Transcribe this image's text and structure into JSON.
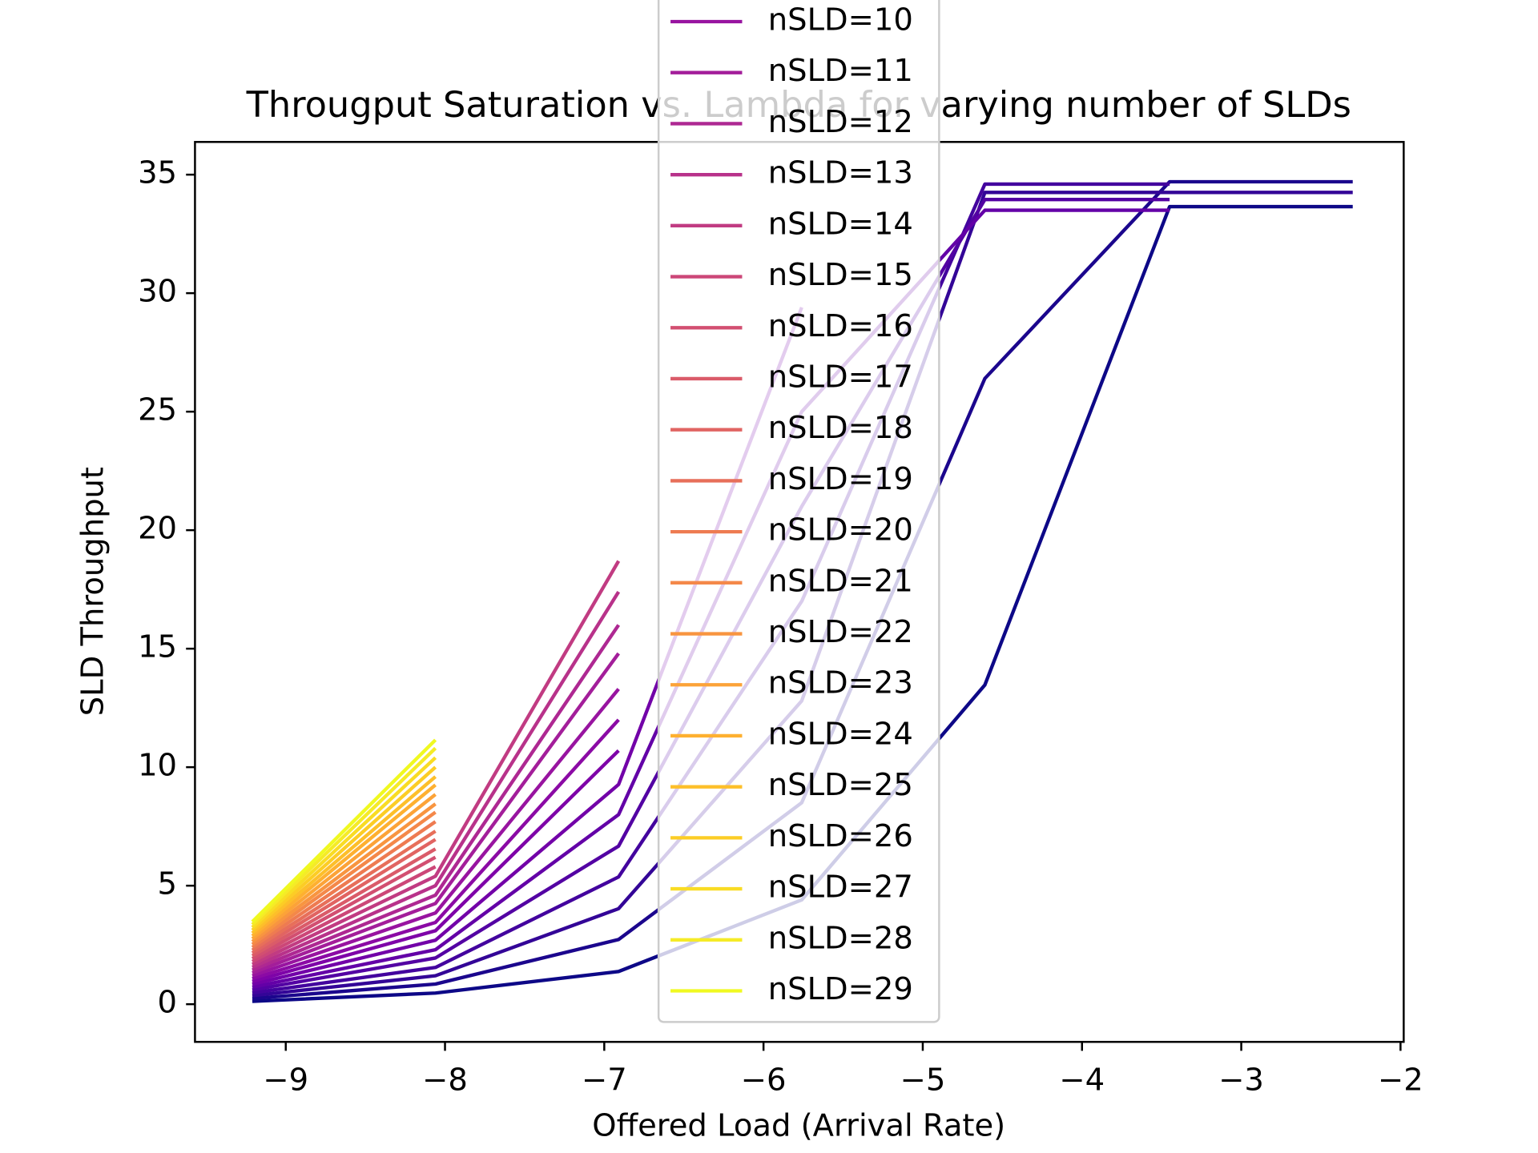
{
  "chart_data": {
    "type": "line",
    "title": "Througput Saturation vs. Lambda for varying number of SLDs",
    "x_label": "Offered Load (Arrival Rate)",
    "y_label": "SLD Throughput",
    "x": [
      -9.21,
      -8.06,
      -6.91,
      -5.76,
      -4.61,
      -3.45,
      -2.3
    ],
    "xlim": [
      -9.57,
      -1.98
    ],
    "ylim": [
      -1.59,
      36.38
    ],
    "xticks": [
      {
        "value": -9,
        "label": "−9"
      },
      {
        "value": -8,
        "label": "−8"
      },
      {
        "value": -7,
        "label": "−7"
      },
      {
        "value": -6,
        "label": "−6"
      },
      {
        "value": -5,
        "label": "−5"
      },
      {
        "value": -4,
        "label": "−4"
      },
      {
        "value": -3,
        "label": "−3"
      },
      {
        "value": -2,
        "label": "−2"
      }
    ],
    "yticks": [
      0,
      5,
      10,
      15,
      20,
      25,
      30,
      35
    ],
    "series": [
      {
        "color": "#0d0887",
        "values": [
          0.12,
          0.47,
          1.38,
          4.4,
          13.47,
          33.65,
          33.65
        ]
      },
      {
        "color": "#1b068d",
        "values": [
          0.24,
          0.85,
          2.73,
          8.5,
          26.4,
          34.7,
          34.7
        ]
      },
      {
        "color": "#330597",
        "values": [
          0.36,
          1.2,
          4.03,
          12.8,
          34.25,
          34.25,
          34.25
        ]
      },
      {
        "color": "#43039e",
        "values": [
          0.48,
          1.55,
          5.37,
          17,
          34.6,
          34.6,
          null
        ]
      },
      {
        "color": "#5302a3",
        "values": [
          0.6,
          1.95,
          6.67,
          21,
          33.95,
          33.95,
          null
        ]
      },
      {
        "color": "#6300a7",
        "values": [
          0.72,
          2.3,
          8.0,
          25,
          33.5,
          33.5,
          null
        ]
      },
      {
        "color": "#7201a8",
        "values": [
          0.84,
          2.7,
          9.27,
          29.4,
          null,
          null,
          null
        ]
      },
      {
        "color": "#7e03a8",
        "values": [
          0.96,
          3.1,
          10.7,
          null,
          null,
          null,
          null
        ]
      },
      {
        "color": "#8b0aa5",
        "values": [
          1.08,
          3.45,
          12.0,
          null,
          null,
          null,
          null
        ]
      },
      {
        "name": "nSLD=10",
        "color": "#9814a0",
        "values": [
          1.2,
          3.85,
          13.3,
          null,
          null,
          null,
          null
        ]
      },
      {
        "name": "nSLD=11",
        "color": "#a31e9a",
        "values": [
          1.32,
          4.25,
          14.8,
          null,
          null,
          null,
          null
        ]
      },
      {
        "name": "nSLD=12",
        "color": "#ae2892",
        "values": [
          1.44,
          4.6,
          16.0,
          null,
          null,
          null,
          null
        ]
      },
      {
        "name": "nSLD=13",
        "color": "#b8328a",
        "values": [
          1.56,
          5.0,
          17.4,
          null,
          null,
          null,
          null
        ]
      },
      {
        "name": "nSLD=14",
        "color": "#c13b82",
        "values": [
          1.68,
          5.4,
          18.7,
          null,
          null,
          null,
          null
        ]
      },
      {
        "name": "nSLD=15",
        "color": "#cc4778",
        "values": [
          1.8,
          5.8,
          null,
          null,
          null,
          null,
          null
        ]
      },
      {
        "name": "nSLD=16",
        "color": "#d24f71",
        "values": [
          1.92,
          6.2,
          null,
          null,
          null,
          null,
          null
        ]
      },
      {
        "name": "nSLD=17",
        "color": "#da5b69",
        "values": [
          2.04,
          6.55,
          null,
          null,
          null,
          null,
          null
        ]
      },
      {
        "name": "nSLD=18",
        "color": "#e16462",
        "values": [
          2.16,
          6.95,
          null,
          null,
          null,
          null,
          null
        ]
      },
      {
        "name": "nSLD=19",
        "color": "#e76f5a",
        "values": [
          2.28,
          7.3,
          null,
          null,
          null,
          null,
          null
        ]
      },
      {
        "name": "nSLD=20",
        "color": "#ee7b51",
        "values": [
          2.4,
          7.7,
          null,
          null,
          null,
          null,
          null
        ]
      },
      {
        "name": "nSLD=21",
        "color": "#f48849",
        "values": [
          2.52,
          8.1,
          null,
          null,
          null,
          null,
          null
        ]
      },
      {
        "name": "nSLD=22",
        "color": "#f89540",
        "values": [
          2.64,
          8.45,
          null,
          null,
          null,
          null,
          null
        ]
      },
      {
        "name": "nSLD=23",
        "color": "#fca338",
        "values": [
          2.76,
          8.85,
          null,
          null,
          null,
          null,
          null
        ]
      },
      {
        "name": "nSLD=24",
        "color": "#feb030",
        "values": [
          2.88,
          9.25,
          null,
          null,
          null,
          null,
          null
        ]
      },
      {
        "name": "nSLD=25",
        "color": "#fdbf2a",
        "values": [
          3.0,
          9.6,
          null,
          null,
          null,
          null,
          null
        ]
      },
      {
        "name": "nSLD=26",
        "color": "#fccd25",
        "values": [
          3.12,
          10.0,
          null,
          null,
          null,
          null,
          null
        ]
      },
      {
        "name": "nSLD=27",
        "color": "#f9dc24",
        "values": [
          3.24,
          10.4,
          null,
          null,
          null,
          null,
          null
        ]
      },
      {
        "name": "nSLD=28",
        "color": "#f5eb27",
        "values": [
          3.36,
          10.8,
          null,
          null,
          null,
          null,
          null
        ]
      },
      {
        "name": "nSLD=29",
        "color": "#f0f921",
        "values": [
          3.48,
          11.15,
          null,
          null,
          null,
          null,
          null
        ]
      }
    ]
  }
}
